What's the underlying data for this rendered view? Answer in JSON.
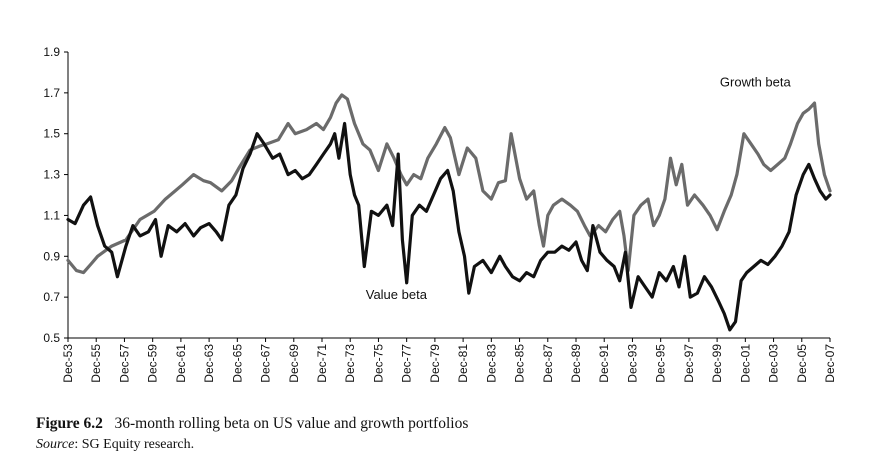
{
  "figure": {
    "number_label": "Figure 6.2",
    "caption": "36-month rolling beta on US value and growth portfolios",
    "source_label": "Source",
    "source_text": ": SG Equity research."
  },
  "chart_data": {
    "type": "line",
    "title": "36-month rolling beta on US value and growth portfolios",
    "xlabel": "",
    "ylabel": "",
    "ylim": [
      0.5,
      1.9
    ],
    "yticks": [
      "0.5",
      "0.7",
      "0.9",
      "1.1",
      "1.3",
      "1.5",
      "1.7",
      "1.9"
    ],
    "xlim": [
      1953.9,
      2007.9
    ],
    "xticks": [
      "Dec-53",
      "Dec-55",
      "Dec-57",
      "Dec-59",
      "Dec-61",
      "Dec-63",
      "Dec-65",
      "Dec-67",
      "Dec-69",
      "Dec-71",
      "Dec-73",
      "Dec-75",
      "Dec-77",
      "Dec-79",
      "Dec-81",
      "Dec-83",
      "Dec-85",
      "Dec-87",
      "Dec-89",
      "Dec-91",
      "Dec-93",
      "Dec-95",
      "Dec-97",
      "Dec-99",
      "Dec-01",
      "Dec-03",
      "Dec-05",
      "Dec-07"
    ],
    "grid": false,
    "series": [
      {
        "name": "Growth beta",
        "color": "#6b6b6b",
        "x": [
          1953.9,
          1954.5,
          1955.0,
          1955.5,
          1956.0,
          1957.0,
          1958.0,
          1959.0,
          1960.0,
          1960.8,
          1961.5,
          1962.0,
          1962.8,
          1963.5,
          1964.0,
          1964.8,
          1965.5,
          1966.0,
          1966.8,
          1967.5,
          1968.0,
          1968.8,
          1969.5,
          1970.0,
          1970.8,
          1971.5,
          1972.0,
          1972.5,
          1972.9,
          1973.3,
          1973.7,
          1974.2,
          1974.8,
          1975.3,
          1975.9,
          1976.5,
          1977.0,
          1977.5,
          1977.9,
          1978.4,
          1978.9,
          1979.4,
          1980.0,
          1980.6,
          1981.0,
          1981.6,
          1982.2,
          1982.8,
          1983.3,
          1983.9,
          1984.4,
          1984.9,
          1985.3,
          1985.9,
          1986.4,
          1986.9,
          1987.3,
          1987.6,
          1987.9,
          1988.3,
          1988.9,
          1989.5,
          1990.0,
          1990.5,
          1990.9,
          1991.5,
          1992.0,
          1992.5,
          1993.0,
          1993.3,
          1993.6,
          1994.0,
          1994.5,
          1995.0,
          1995.4,
          1995.8,
          1996.2,
          1996.6,
          1997.0,
          1997.4,
          1997.8,
          1998.3,
          1998.9,
          1999.4,
          1999.9,
          2000.4,
          2000.9,
          2001.3,
          2001.8,
          2002.3,
          2002.8,
          2003.2,
          2003.7,
          2004.2,
          2004.7,
          2005.1,
          2005.6,
          2006.0,
          2006.4,
          2006.8,
          2007.1,
          2007.5,
          2007.9
        ],
        "values": [
          0.88,
          0.83,
          0.82,
          0.86,
          0.9,
          0.95,
          0.98,
          1.08,
          1.12,
          1.18,
          1.22,
          1.25,
          1.3,
          1.27,
          1.26,
          1.22,
          1.27,
          1.33,
          1.42,
          1.44,
          1.45,
          1.47,
          1.55,
          1.5,
          1.52,
          1.55,
          1.52,
          1.58,
          1.65,
          1.69,
          1.67,
          1.55,
          1.45,
          1.42,
          1.32,
          1.45,
          1.38,
          1.3,
          1.25,
          1.3,
          1.28,
          1.38,
          1.45,
          1.53,
          1.48,
          1.3,
          1.43,
          1.38,
          1.22,
          1.18,
          1.26,
          1.27,
          1.5,
          1.28,
          1.18,
          1.22,
          1.05,
          0.95,
          1.1,
          1.15,
          1.18,
          1.15,
          1.12,
          1.05,
          1.0,
          1.05,
          1.02,
          1.08,
          1.12,
          1.0,
          0.83,
          1.1,
          1.15,
          1.18,
          1.05,
          1.1,
          1.18,
          1.38,
          1.25,
          1.35,
          1.15,
          1.2,
          1.15,
          1.1,
          1.03,
          1.12,
          1.2,
          1.3,
          1.5,
          1.45,
          1.4,
          1.35,
          1.32,
          1.35,
          1.38,
          1.45,
          1.55,
          1.6,
          1.62,
          1.65,
          1.45,
          1.3,
          1.22
        ]
      },
      {
        "name": "Value beta",
        "color": "#111111",
        "x": [
          1953.9,
          1954.4,
          1955.0,
          1955.5,
          1956.0,
          1956.5,
          1957.0,
          1957.4,
          1958.0,
          1958.5,
          1959.0,
          1959.6,
          1960.1,
          1960.5,
          1961.0,
          1961.6,
          1962.2,
          1962.8,
          1963.3,
          1963.9,
          1964.4,
          1964.8,
          1965.3,
          1965.8,
          1966.3,
          1966.8,
          1967.3,
          1967.8,
          1968.4,
          1968.9,
          1969.5,
          1970.0,
          1970.5,
          1971.0,
          1971.5,
          1972.0,
          1972.5,
          1972.8,
          1973.1,
          1973.5,
          1973.9,
          1974.2,
          1974.5,
          1974.9,
          1975.4,
          1975.9,
          1976.5,
          1976.9,
          1977.3,
          1977.6,
          1977.9,
          1978.3,
          1978.8,
          1979.3,
          1979.8,
          1980.3,
          1980.8,
          1981.2,
          1981.6,
          1982.0,
          1982.3,
          1982.7,
          1983.3,
          1983.9,
          1984.5,
          1984.9,
          1985.4,
          1985.9,
          1986.4,
          1986.9,
          1987.4,
          1987.9,
          1988.4,
          1988.9,
          1989.4,
          1989.9,
          1990.3,
          1990.7,
          1991.1,
          1991.6,
          1992.1,
          1992.6,
          1993.0,
          1993.4,
          1993.8,
          1994.3,
          1994.8,
          1995.3,
          1995.8,
          1996.3,
          1996.8,
          1997.2,
          1997.6,
          1998.0,
          1998.5,
          1999.0,
          1999.5,
          2000.0,
          2000.4,
          2000.8,
          2001.2,
          2001.6,
          2002.0,
          2002.5,
          2003.0,
          2003.5,
          2004.0,
          2004.5,
          2005.0,
          2005.5,
          2006.0,
          2006.4,
          2006.8,
          2007.2,
          2007.6,
          2007.9
        ],
        "values": [
          1.08,
          1.06,
          1.15,
          1.19,
          1.05,
          0.95,
          0.92,
          0.8,
          0.95,
          1.05,
          1.0,
          1.02,
          1.08,
          0.9,
          1.05,
          1.02,
          1.06,
          1.0,
          1.04,
          1.06,
          1.02,
          0.98,
          1.15,
          1.2,
          1.33,
          1.4,
          1.5,
          1.45,
          1.38,
          1.4,
          1.3,
          1.32,
          1.28,
          1.3,
          1.35,
          1.4,
          1.45,
          1.5,
          1.38,
          1.55,
          1.3,
          1.2,
          1.15,
          0.85,
          1.12,
          1.1,
          1.15,
          1.05,
          1.4,
          0.98,
          0.77,
          1.1,
          1.15,
          1.12,
          1.2,
          1.28,
          1.32,
          1.22,
          1.02,
          0.9,
          0.72,
          0.85,
          0.88,
          0.82,
          0.9,
          0.85,
          0.8,
          0.78,
          0.82,
          0.8,
          0.88,
          0.92,
          0.92,
          0.95,
          0.93,
          0.97,
          0.88,
          0.83,
          1.05,
          0.92,
          0.88,
          0.85,
          0.78,
          0.92,
          0.65,
          0.8,
          0.75,
          0.7,
          0.82,
          0.78,
          0.85,
          0.75,
          0.9,
          0.7,
          0.72,
          0.8,
          0.75,
          0.68,
          0.62,
          0.54,
          0.58,
          0.78,
          0.82,
          0.85,
          0.88,
          0.86,
          0.9,
          0.95,
          1.02,
          1.2,
          1.3,
          1.35,
          1.28,
          1.22,
          1.18,
          1.2
        ]
      }
    ],
    "annotations": [
      {
        "text": "Growth beta",
        "series": "Growth beta"
      },
      {
        "text": "Value beta",
        "series": "Value beta"
      }
    ]
  }
}
